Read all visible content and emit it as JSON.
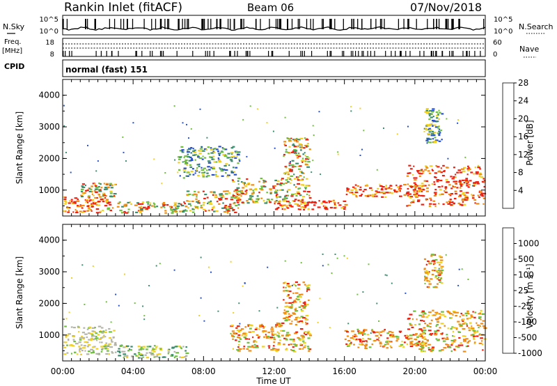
{
  "header": {
    "station": "Rankin Inlet (fitACF)",
    "beam": "Beam 06",
    "date": "07/Nov/2018"
  },
  "noise_panel": {
    "left_label": "N.Sky",
    "right_label": "N.Search",
    "left_ticks": [
      "10^5",
      "10^0"
    ],
    "right_ticks": [
      "10^5",
      "10^0"
    ]
  },
  "freq_panel": {
    "left_label_1": "Freq.",
    "left_label_2": "[MHz]",
    "right_label": "Nave",
    "left_ticks": [
      "18",
      "8"
    ],
    "right_ticks": [
      "60",
      "0"
    ]
  },
  "cpid_panel": {
    "label": "CPID",
    "text": "normal (fast) 151"
  },
  "colors": {
    "scatter_red": "#ee2010",
    "scatter_orange": "#f08c14",
    "scatter_yellow": "#f0d020",
    "scatter_green": "#6ec03c",
    "scatter_darkgreen": "#3c8c6e",
    "scatter_blue": "#2850c8",
    "ground_gray": "#b4b4a8"
  },
  "chart_data": [
    {
      "type": "heatmap",
      "title": "Power",
      "ylabel": "Slant Range [km]",
      "xlabel": "Time UT",
      "ylim": [
        180,
        4500
      ],
      "yticks": [
        "1000",
        "2000",
        "3000",
        "4000"
      ],
      "xticks": [
        "00:00",
        "04:00",
        "08:00",
        "12:00",
        "16:00",
        "20:00",
        "00:00"
      ],
      "colorbar": {
        "label": "Power [dB]",
        "ticks": [
          "4",
          "8",
          "12",
          "16",
          "20",
          "24",
          "28"
        ],
        "colors": [
          "#1414ee",
          "#2850c8",
          "#3c8c6e",
          "#6ec03c",
          "#f0d020",
          "#f08c14",
          "#ee2010"
        ]
      },
      "regions": [
        {
          "t": [
            0,
            2.5
          ],
          "r": [
            300,
            800
          ],
          "level": "high"
        },
        {
          "t": [
            1.0,
            3.0
          ],
          "r": [
            800,
            1250
          ],
          "level": "mid"
        },
        {
          "t": [
            2.5,
            7.0
          ],
          "r": [
            300,
            650
          ],
          "level": "mid"
        },
        {
          "t": [
            7.0,
            10.0
          ],
          "r": [
            300,
            1000
          ],
          "level": "mid"
        },
        {
          "t": [
            9.5,
            14.0
          ],
          "r": [
            600,
            1400
          ],
          "level": "mid"
        },
        {
          "t": [
            12.5,
            14.0
          ],
          "r": [
            1400,
            2700
          ],
          "level": "mid"
        },
        {
          "t": [
            12.0,
            16.0
          ],
          "r": [
            400,
            700
          ],
          "level": "high"
        },
        {
          "t": [
            16.0,
            20.5
          ],
          "r": [
            800,
            1200
          ],
          "level": "high"
        },
        {
          "t": [
            19.5,
            24.0
          ],
          "r": [
            500,
            1800
          ],
          "level": "high"
        },
        {
          "t": [
            20.5,
            21.5
          ],
          "r": [
            2500,
            3600
          ],
          "level": "low"
        },
        {
          "t": [
            6.5,
            10.0
          ],
          "r": [
            1400,
            2400
          ],
          "level": "low"
        }
      ]
    },
    {
      "type": "heatmap",
      "title": "Velocity",
      "ylabel": "Slant Range [km]",
      "xlabel": "Time UT",
      "ylim": [
        180,
        4500
      ],
      "yticks": [
        "1000",
        "2000",
        "3000",
        "4000"
      ],
      "xticks": [
        "00:00",
        "04:00",
        "08:00",
        "12:00",
        "16:00",
        "20:00",
        "00:00"
      ],
      "colorbar": {
        "label": "Velocity [m s⁻¹]",
        "ticks": [
          "1000",
          "500",
          "100",
          "25",
          "-25",
          "-100",
          "-500",
          "-1000"
        ],
        "colors": [
          "#2850c8",
          "#3c8c6e",
          "#6ec03c",
          "#b4b4a8",
          "#f0d020",
          "#f08c14",
          "#f05014",
          "#ee1414"
        ]
      },
      "regions": [
        {
          "t": [
            0,
            3.0
          ],
          "r": [
            400,
            1300
          ],
          "level": "ground"
        },
        {
          "t": [
            3.0,
            7.0
          ],
          "r": [
            300,
            700
          ],
          "level": "positive"
        },
        {
          "t": [
            9.5,
            14.0
          ],
          "r": [
            500,
            1400
          ],
          "level": "negative"
        },
        {
          "t": [
            12.5,
            14.0
          ],
          "r": [
            1400,
            2700
          ],
          "level": "negative"
        },
        {
          "t": [
            16.0,
            20.5
          ],
          "r": [
            600,
            1200
          ],
          "level": "negative"
        },
        {
          "t": [
            19.5,
            24.0
          ],
          "r": [
            500,
            1800
          ],
          "level": "negative"
        },
        {
          "t": [
            20.5,
            21.5
          ],
          "r": [
            2500,
            3600
          ],
          "level": "negative"
        }
      ]
    }
  ],
  "time_axis_label": "Time UT"
}
